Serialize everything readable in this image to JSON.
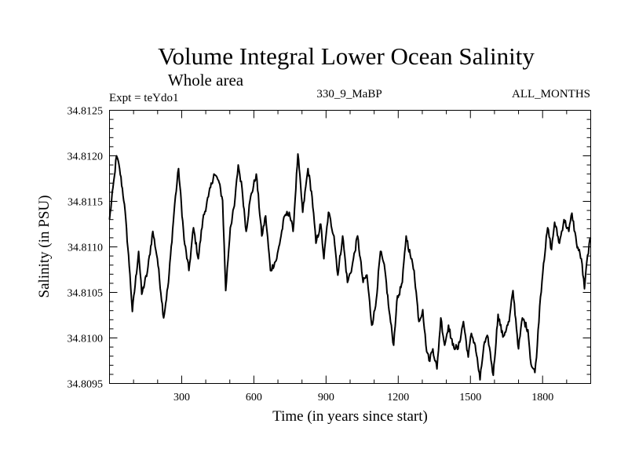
{
  "chart_data": {
    "type": "line",
    "title": "Volume Integral Lower Ocean Salinity",
    "subtitle": "Whole area",
    "annotations": {
      "experiment": "Expt = teYdo1",
      "period": "330_9_MaBP",
      "months": "ALL_MONTHS"
    },
    "xlabel": "Time (in years since start)",
    "ylabel": "Salinity (in PSU)",
    "xlim": [
      0,
      2000
    ],
    "ylim": [
      34.8095,
      34.8125
    ],
    "x_tick_labels": [
      "300",
      "600",
      "900",
      "1200",
      "1500",
      "1800"
    ],
    "x_ticks": [
      300,
      600,
      900,
      1200,
      1500,
      1800
    ],
    "x_minor_step": 100,
    "y_tick_labels": [
      "34.8095",
      "34.8100",
      "34.8105",
      "34.8110",
      "34.8115",
      "34.8120",
      "34.8125"
    ],
    "y_ticks": [
      34.8095,
      34.81,
      34.8105,
      34.811,
      34.8115,
      34.812,
      34.8125
    ],
    "y_minor_step": 0.0001,
    "grid": false,
    "line_color": "#000000",
    "series": [
      {
        "name": "Salinity",
        "x": [
          0,
          20,
          29,
          42,
          62,
          85,
          95,
          121,
          134,
          157,
          180,
          199,
          225,
          245,
          271,
          287,
          310,
          330,
          349,
          369,
          388,
          411,
          434,
          453,
          470,
          483,
          502,
          519,
          535,
          551,
          568,
          584,
          610,
          633,
          649,
          669,
          695,
          728,
          747,
          763,
          783,
          803,
          825,
          842,
          858,
          878,
          891,
          910,
          933,
          949,
          969,
          989,
          1008,
          1031,
          1054,
          1070,
          1090,
          1106,
          1126,
          1145,
          1162,
          1181,
          1194,
          1217,
          1233,
          1250,
          1266,
          1286,
          1302,
          1315,
          1328,
          1344,
          1361,
          1377,
          1393,
          1409,
          1426,
          1449,
          1471,
          1491,
          1504,
          1520,
          1540,
          1556,
          1573,
          1595,
          1615,
          1635,
          1661,
          1677,
          1700,
          1716,
          1739,
          1752,
          1768,
          1778,
          1788,
          1804,
          1821,
          1837,
          1850,
          1870,
          1889,
          1909,
          1922,
          1941,
          1961,
          1974,
          1987,
          2000
        ],
        "y": [
          34.8113,
          34.81177,
          34.812,
          34.81186,
          34.81147,
          34.8107,
          34.81029,
          34.81095,
          34.81048,
          34.81072,
          34.81117,
          34.81087,
          34.81022,
          34.81061,
          34.81147,
          34.81186,
          34.81108,
          34.81074,
          34.81121,
          34.81087,
          34.8113,
          34.81155,
          34.8118,
          34.81173,
          34.81151,
          34.81052,
          34.81121,
          34.81145,
          34.8119,
          34.81164,
          34.81117,
          34.81151,
          34.8118,
          34.81112,
          34.81134,
          34.81074,
          34.81087,
          34.81134,
          34.81138,
          34.81117,
          34.81202,
          34.81138,
          34.81186,
          34.81155,
          34.81104,
          34.81125,
          34.81087,
          34.81138,
          34.81112,
          34.81069,
          34.81112,
          34.81061,
          34.81078,
          34.81112,
          34.81061,
          34.81069,
          34.81014,
          34.81035,
          34.81095,
          34.81074,
          34.8103,
          34.80992,
          34.8104,
          34.81061,
          34.81112,
          34.81091,
          34.81074,
          34.81018,
          34.81031,
          34.80992,
          34.80975,
          34.80988,
          34.80966,
          34.81022,
          34.80992,
          34.81014,
          34.80992,
          34.80988,
          34.81018,
          34.80979,
          34.81005,
          34.80992,
          34.80954,
          34.80992,
          34.81001,
          34.80959,
          34.81026,
          34.81001,
          34.81018,
          34.81052,
          34.80988,
          34.81022,
          34.81009,
          34.80971,
          34.80962,
          34.80992,
          34.81035,
          34.81082,
          34.81121,
          34.81097,
          34.81127,
          34.81104,
          34.8113,
          34.81117,
          34.81137,
          34.81104,
          34.81087,
          34.81054,
          34.81091,
          34.8111
        ]
      }
    ]
  }
}
